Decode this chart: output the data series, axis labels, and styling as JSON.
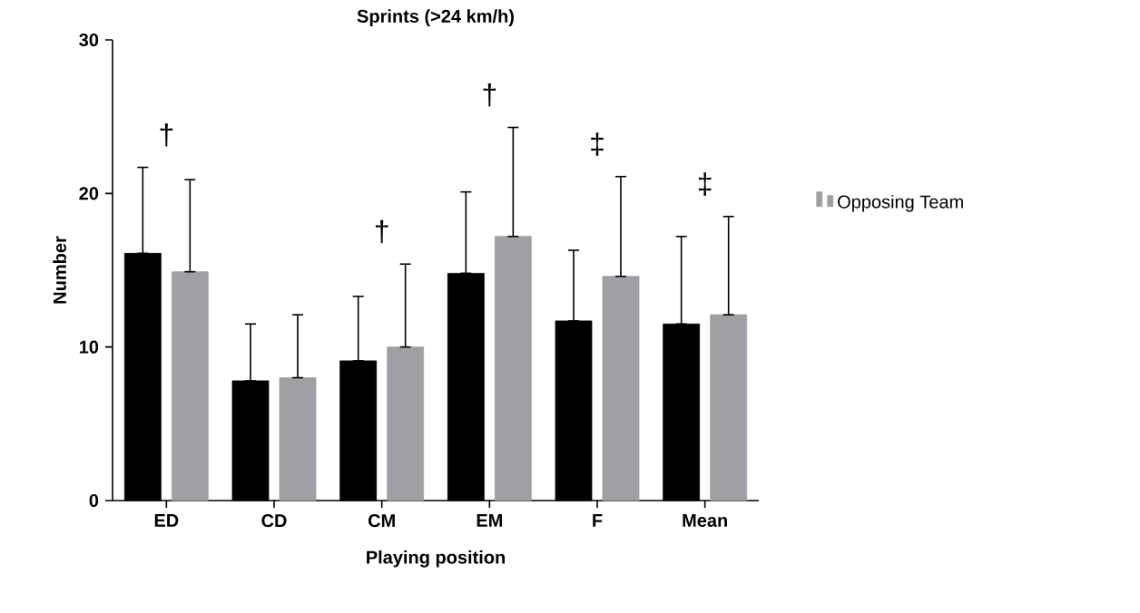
{
  "chart_data": {
    "type": "bar",
    "title": "Sprints (>24 km/h)",
    "xlabel": "Playing position",
    "ylabel": "Number",
    "categories": [
      "ED",
      "CD",
      "CM",
      "EM",
      "F",
      "Mean"
    ],
    "series": [
      {
        "color": "#000000",
        "values": [
          16.1,
          7.8,
          9.1,
          14.8,
          11.7,
          11.5
        ],
        "errors": [
          [
            16.1,
            21.7
          ],
          [
            7.8,
            11.5
          ],
          [
            9.1,
            13.3
          ],
          [
            14.8,
            20.1
          ],
          [
            11.7,
            16.3
          ],
          [
            11.5,
            17.2
          ]
        ]
      },
      {
        "name": "Opposing Team",
        "color": "#a0a0a4",
        "values": [
          14.9,
          8.0,
          10.0,
          17.2,
          14.6,
          12.1
        ],
        "errors": [
          [
            14.9,
            20.9
          ],
          [
            8.0,
            12.1
          ],
          [
            10.0,
            15.4
          ],
          [
            17.2,
            24.3
          ],
          [
            14.6,
            21.1
          ],
          [
            12.1,
            18.5
          ]
        ]
      }
    ],
    "ylim": [
      0,
      30
    ],
    "yticks": [
      0,
      10,
      20,
      30
    ],
    "legend": "right",
    "grid": false,
    "annotations": [
      "†",
      "†",
      "†",
      "‡",
      "‡"
    ]
  }
}
